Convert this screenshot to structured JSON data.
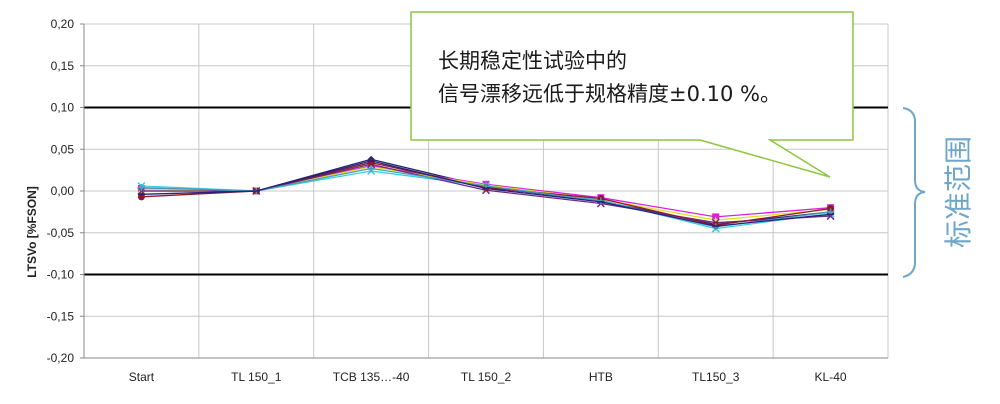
{
  "chart_data": {
    "type": "line",
    "ylabel": "LTSVo [%FSON]",
    "xlabel": "",
    "ylim": [
      -0.2,
      0.2
    ],
    "y_ticks": [
      "0,20",
      "0,15",
      "0,10",
      "0,05",
      "0,00",
      "-0,05",
      "-0,10",
      "-0,15",
      "-0,20"
    ],
    "y_tick_values": [
      0.2,
      0.15,
      0.1,
      0.05,
      0.0,
      -0.05,
      -0.1,
      -0.15,
      -0.2
    ],
    "categories": [
      "Start",
      "TL 150_1",
      "TCB 135…-40",
      "TL 150_2",
      "HTB",
      "TL150_3",
      "KL-40"
    ],
    "grid": true,
    "limit_lines": [
      0.1,
      -0.1
    ],
    "series": [
      {
        "color": "#1f2a6b",
        "marker": "diamond",
        "values": [
          0.0,
          0.0,
          0.038,
          0.005,
          -0.012,
          -0.04,
          -0.025
        ]
      },
      {
        "color": "#e020d8",
        "marker": "square",
        "values": [
          0.003,
          0.0,
          0.03,
          0.008,
          -0.008,
          -0.031,
          -0.02
        ]
      },
      {
        "color": "#e0e020",
        "marker": "triangle",
        "values": [
          0.002,
          0.0,
          0.029,
          0.007,
          -0.01,
          -0.035,
          -0.022
        ]
      },
      {
        "color": "#36d0e0",
        "marker": "x",
        "values": [
          0.006,
          0.0,
          0.024,
          0.006,
          -0.011,
          -0.045,
          -0.027
        ]
      },
      {
        "color": "#6a2a8a",
        "marker": "x",
        "values": [
          0.0,
          0.0,
          0.032,
          0.001,
          -0.015,
          -0.038,
          -0.03
        ]
      },
      {
        "color": "#8b1a2a",
        "marker": "circle",
        "values": [
          -0.007,
          0.0,
          0.034,
          0.004,
          -0.009,
          -0.041,
          -0.021
        ]
      },
      {
        "color": "#4a9ac0",
        "marker": "plus",
        "values": [
          0.004,
          0.0,
          0.027,
          0.006,
          -0.012,
          -0.043,
          -0.025
        ]
      },
      {
        "color": "#2d1f7a",
        "marker": "line",
        "values": [
          -0.004,
          0.0,
          0.036,
          0.003,
          -0.013,
          -0.042,
          -0.028
        ]
      }
    ],
    "annotations": {
      "callout_lines": [
        "长期稳定性试验中的",
        "信号漂移远低于规格精度±0.10 %。"
      ],
      "brace_label": "标准范围"
    }
  },
  "colors": {
    "callout_border": "#8dc63f",
    "brace": "#6fa6c9",
    "grid": "#c8c8c8",
    "limit_line": "#000000"
  }
}
